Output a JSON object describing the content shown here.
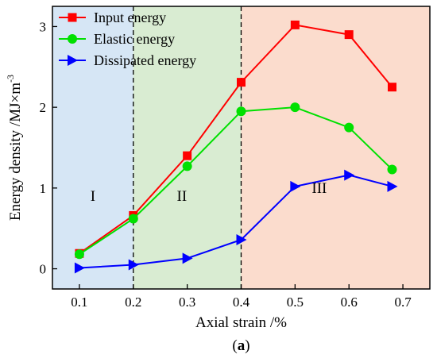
{
  "chart_data": {
    "type": "line",
    "xlabel": "Axial strain /%",
    "ylabel": "Energy density /MJ×m",
    "ylabel_superscript": "-3",
    "caption_letter": "a",
    "xlim": [
      0.05,
      0.75
    ],
    "ylim": [
      -0.25,
      3.25
    ],
    "x_ticks": [
      0.1,
      0.2,
      0.3,
      0.4,
      0.5,
      0.6,
      0.7
    ],
    "y_ticks": [
      0,
      1,
      2,
      3
    ],
    "regions": [
      {
        "label": "I",
        "x_start": 0.05,
        "x_end": 0.2,
        "color": "#d6e6f5"
      },
      {
        "label": "II",
        "x_start": 0.2,
        "x_end": 0.4,
        "color": "#d9ecd2"
      },
      {
        "label": "III",
        "x_start": 0.4,
        "x_end": 0.75,
        "color": "#fbdccd"
      }
    ],
    "dividers": [
      0.2,
      0.4
    ],
    "legend_position": "top-left",
    "series": [
      {
        "name": "Input energy",
        "marker": "square",
        "color": "#ff0000",
        "x": [
          0.1,
          0.2,
          0.3,
          0.4,
          0.5,
          0.6,
          0.68
        ],
        "y": [
          0.19,
          0.66,
          1.4,
          2.31,
          3.02,
          2.9,
          2.25
        ]
      },
      {
        "name": "Elastic energy",
        "marker": "circle",
        "color": "#00e000",
        "x": [
          0.1,
          0.2,
          0.3,
          0.4,
          0.5,
          0.6,
          0.68
        ],
        "y": [
          0.18,
          0.62,
          1.27,
          1.95,
          2.0,
          1.75,
          1.23
        ]
      },
      {
        "name": "Dissipated energy",
        "marker": "triangle-right",
        "color": "#0000ff",
        "x": [
          0.1,
          0.2,
          0.3,
          0.4,
          0.5,
          0.6,
          0.68
        ],
        "y": [
          0.01,
          0.05,
          0.13,
          0.36,
          1.02,
          1.16,
          1.02
        ]
      }
    ]
  }
}
